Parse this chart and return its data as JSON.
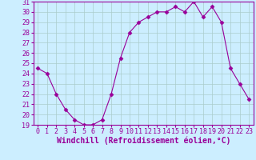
{
  "x": [
    0,
    1,
    2,
    3,
    4,
    5,
    6,
    7,
    8,
    9,
    10,
    11,
    12,
    13,
    14,
    15,
    16,
    17,
    18,
    19,
    20,
    21,
    22,
    23
  ],
  "y": [
    24.5,
    24.0,
    22.0,
    20.5,
    19.5,
    19.0,
    19.0,
    19.5,
    22.0,
    25.5,
    28.0,
    29.0,
    29.5,
    30.0,
    30.0,
    30.5,
    30.0,
    31.0,
    29.5,
    30.5,
    29.0,
    24.5,
    23.0,
    21.5
  ],
  "line_color": "#990099",
  "marker": "D",
  "marker_size": 2.5,
  "bg_color": "#cceeff",
  "grid_color": "#aacccc",
  "xlabel": "Windchill (Refroidissement éolien,°C)",
  "xlabel_color": "#990099",
  "tick_color": "#990099",
  "ylim": [
    19,
    31
  ],
  "yticks": [
    19,
    20,
    21,
    22,
    23,
    24,
    25,
    26,
    27,
    28,
    29,
    30,
    31
  ],
  "xticks": [
    0,
    1,
    2,
    3,
    4,
    5,
    6,
    7,
    8,
    9,
    10,
    11,
    12,
    13,
    14,
    15,
    16,
    17,
    18,
    19,
    20,
    21,
    22,
    23
  ],
  "spine_color": "#990099",
  "label_fontsize": 7,
  "tick_fontsize": 6
}
